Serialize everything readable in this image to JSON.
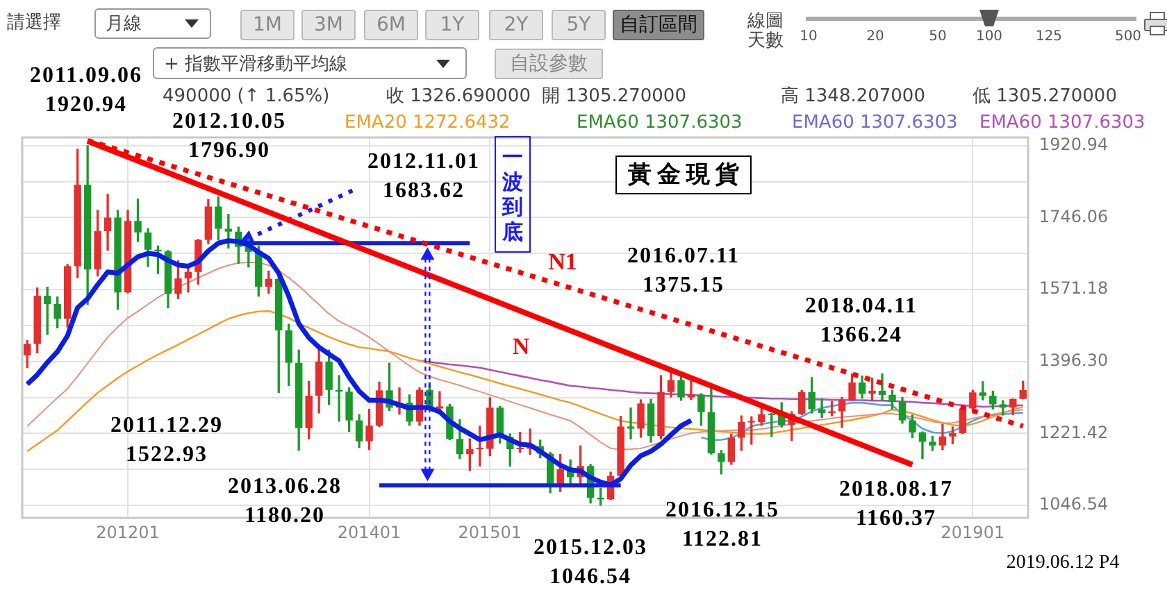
{
  "chart_data": {
    "type": "candlestick",
    "title": "黃金現貨",
    "categories": [
      null,
      null,
      null,
      null,
      null,
      null,
      null,
      null,
      null,
      null,
      "201201",
      null,
      null,
      null,
      null,
      null,
      null,
      null,
      null,
      null,
      null,
      null,
      null,
      null,
      null,
      null,
      null,
      null,
      null,
      null,
      null,
      null,
      null,
      null,
      "201401",
      null,
      null,
      null,
      null,
      null,
      null,
      null,
      null,
      null,
      null,
      null,
      "201501",
      null,
      null,
      null,
      null,
      null,
      null,
      null,
      null,
      null,
      null,
      null,
      null,
      null,
      null,
      null,
      null,
      null,
      null,
      null,
      null,
      null,
      null,
      null,
      null,
      null,
      null,
      null,
      null,
      null,
      null,
      null,
      null,
      null,
      null,
      null,
      null,
      null,
      null,
      null,
      null,
      null,
      null,
      null,
      null,
      null,
      null,
      null,
      "201901",
      null,
      null,
      null,
      null,
      null
    ],
    "ohlc": [
      [
        1411,
        1447,
        1381,
        1439
      ],
      [
        1439,
        1575,
        1417,
        1556
      ],
      [
        1556,
        1577,
        1462,
        1536
      ],
      [
        1536,
        1553,
        1478,
        1500
      ],
      [
        1500,
        1632,
        1480,
        1628
      ],
      [
        1628,
        1912,
        1600,
        1826
      ],
      [
        1826,
        1920.94,
        1535,
        1620
      ],
      [
        1620,
        1764,
        1604,
        1713
      ],
      [
        1713,
        1803,
        1667,
        1746
      ],
      [
        1746,
        1764,
        1522.93,
        1564
      ],
      [
        1564,
        1764,
        1563,
        1738
      ],
      [
        1738,
        1791,
        1688,
        1710
      ],
      [
        1710,
        1719,
        1627,
        1668
      ],
      [
        1668,
        1677,
        1610,
        1664
      ],
      [
        1664,
        1666,
        1527,
        1561
      ],
      [
        1561,
        1641,
        1549,
        1598
      ],
      [
        1598,
        1631,
        1565,
        1614
      ],
      [
        1614,
        1693,
        1584,
        1692
      ],
      [
        1692,
        1790,
        1683,
        1773
      ],
      [
        1773,
        1796.9,
        1692,
        1719
      ],
      [
        1719,
        1754,
        1672,
        1712
      ],
      [
        1712,
        1723,
        1635,
        1675
      ],
      [
        1675,
        1694,
        1626,
        1663
      ],
      [
        1663,
        1677,
        1555,
        1578
      ],
      [
        1578,
        1616,
        1562,
        1597
      ],
      [
        1597,
        1605,
        1321,
        1472
      ],
      [
        1472,
        1487,
        1338,
        1393
      ],
      [
        1393,
        1424,
        1180.2,
        1234
      ],
      [
        1234,
        1348,
        1208,
        1313
      ],
      [
        1313,
        1433,
        1271,
        1396
      ],
      [
        1396,
        1424,
        1292,
        1327
      ],
      [
        1327,
        1362,
        1251,
        1323
      ],
      [
        1323,
        1332,
        1226,
        1253
      ],
      [
        1253,
        1267,
        1187,
        1202
      ],
      [
        1202,
        1280,
        1182,
        1240
      ],
      [
        1240,
        1346,
        1238,
        1326
      ],
      [
        1326,
        1392,
        1277,
        1284
      ],
      [
        1284,
        1332,
        1268,
        1296
      ],
      [
        1296,
        1315,
        1241,
        1250
      ],
      [
        1250,
        1332,
        1241,
        1327
      ],
      [
        1327,
        1345,
        1282,
        1282
      ],
      [
        1282,
        1323,
        1273,
        1287
      ],
      [
        1287,
        1292,
        1206,
        1208
      ],
      [
        1208,
        1255,
        1160,
        1171
      ],
      [
        1171,
        1208,
        1131,
        1183
      ],
      [
        1183,
        1239,
        1142,
        1184
      ],
      [
        1184,
        1308,
        1167,
        1284
      ],
      [
        1284,
        1287,
        1198,
        1213
      ],
      [
        1213,
        1220,
        1142,
        1183
      ],
      [
        1183,
        1224,
        1175,
        1184
      ],
      [
        1184,
        1232,
        1170,
        1190
      ],
      [
        1190,
        1205,
        1162,
        1172
      ],
      [
        1172,
        1175,
        1077,
        1095
      ],
      [
        1095,
        1170,
        1080,
        1134
      ],
      [
        1134,
        1157,
        1098,
        1115
      ],
      [
        1115,
        1191,
        1098,
        1142
      ],
      [
        1142,
        1146,
        1052,
        1065
      ],
      [
        1065,
        1088,
        1046.54,
        1061
      ],
      [
        1061,
        1127,
        1061,
        1118
      ],
      [
        1118,
        1263,
        1110,
        1238
      ],
      [
        1238,
        1283,
        1208,
        1233
      ],
      [
        1233,
        1303,
        1212,
        1294
      ],
      [
        1294,
        1304,
        1200,
        1215
      ],
      [
        1215,
        1362,
        1208,
        1322
      ],
      [
        1322,
        1375.15,
        1310,
        1351
      ],
      [
        1351,
        1367,
        1302,
        1309
      ],
      [
        1309,
        1353,
        1304,
        1316
      ],
      [
        1316,
        1318,
        1241,
        1273
      ],
      [
        1273,
        1338,
        1171,
        1173
      ],
      [
        1173,
        1180,
        1122.81,
        1152
      ],
      [
        1152,
        1220,
        1146,
        1211
      ],
      [
        1211,
        1264,
        1180,
        1249
      ],
      [
        1248,
        1262,
        1195,
        1249
      ],
      [
        1249,
        1295,
        1241,
        1268
      ],
      [
        1268,
        1270,
        1214,
        1266
      ],
      [
        1266,
        1296,
        1237,
        1242
      ],
      [
        1242,
        1274,
        1204,
        1269
      ],
      [
        1269,
        1326,
        1267,
        1322
      ],
      [
        1322,
        1357,
        1271,
        1280
      ],
      [
        1280,
        1306,
        1260,
        1271
      ],
      [
        1271,
        1299,
        1264,
        1275
      ],
      [
        1275,
        1309,
        1236,
        1302
      ],
      [
        1302,
        1366,
        1302,
        1345
      ],
      [
        1345,
        1361,
        1307,
        1318
      ],
      [
        1318,
        1356,
        1303,
        1325
      ],
      [
        1325,
        1366.24,
        1301,
        1315
      ],
      [
        1315,
        1326,
        1281,
        1298
      ],
      [
        1298,
        1309,
        1246,
        1253
      ],
      [
        1253,
        1266,
        1211,
        1224
      ],
      [
        1224,
        1225,
        1160.37,
        1201
      ],
      [
        1201,
        1214,
        1180,
        1192
      ],
      [
        1192,
        1243,
        1182,
        1214
      ],
      [
        1214,
        1237,
        1196,
        1222
      ],
      [
        1222,
        1284,
        1221,
        1282
      ],
      [
        1282,
        1326,
        1276,
        1321
      ],
      [
        1321,
        1347,
        1303,
        1313
      ],
      [
        1313,
        1324,
        1281,
        1292
      ],
      [
        1292,
        1301,
        1266,
        1284
      ],
      [
        1284,
        1305,
        1267,
        1305
      ],
      [
        1305.27,
        1348.207,
        1305.27,
        1326.69
      ]
    ],
    "colors": [
      "#e52e2e",
      "#e52e2e",
      "#1a9a2a",
      "#1a9a2a",
      "#e52e2e",
      "#e52e2e",
      "#1a9a2a",
      "#e52e2e",
      "#e52e2e",
      "#1a9a2a",
      "#e52e2e",
      "#1a9a2a",
      "#1a9a2a",
      "#1a9a2a",
      "#1a9a2a",
      "#e52e2e",
      "#e52e2e",
      "#e52e2e",
      "#e52e2e",
      "#1a9a2a",
      "#1a9a2a",
      "#1a9a2a",
      "#1a9a2a",
      "#1a9a2a",
      "#e52e2e",
      "#1a9a2a",
      "#1a9a2a",
      "#1a9a2a",
      "#e52e2e",
      "#e52e2e",
      "#1a9a2a",
      "#1a9a2a",
      "#1a9a2a",
      "#1a9a2a",
      "#e52e2e",
      "#e52e2e",
      "#1a9a2a",
      "#e52e2e",
      "#1a9a2a",
      "#e52e2e",
      "#1a9a2a",
      "#e52e2e",
      "#1a9a2a",
      "#1a9a2a",
      "#e52e2e",
      "#e52e2e",
      "#e52e2e",
      "#1a9a2a",
      "#1a9a2a",
      "#e52e2e",
      "#e52e2e",
      "#1a9a2a",
      "#1a9a2a",
      "#e52e2e",
      "#1a9a2a",
      "#e52e2e",
      "#1a9a2a",
      "#1a9a2a",
      "#e52e2e",
      "#e52e2e",
      "#1a9a2a",
      "#e52e2e",
      "#1a9a2a",
      "#e52e2e",
      "#e52e2e",
      "#1a9a2a",
      "#e52e2e",
      "#1a9a2a",
      "#1a9a2a",
      "#1a9a2a",
      "#e52e2e",
      "#e52e2e",
      "#e52e2e",
      "#e52e2e",
      "#1a9a2a",
      "#1a9a2a",
      "#e52e2e",
      "#e52e2e",
      "#1a9a2a",
      "#1a9a2a",
      "#e52e2e",
      "#e52e2e",
      "#e52e2e",
      "#1a9a2a",
      "#e52e2e",
      "#1a9a2a",
      "#1a9a2a",
      "#1a9a2a",
      "#1a9a2a",
      "#1a9a2a",
      "#1a9a2a",
      "#e52e2e",
      "#e52e2e",
      "#e52e2e",
      "#e52e2e",
      "#1a9a2a",
      "#1a9a2a",
      "#1a9a2a",
      "#e52e2e",
      "#e52e2e"
    ],
    "series": [
      {
        "type": "line",
        "color": "#e8907a",
        "values": [
          1239,
          1262,
          1285,
          1308,
          1330,
          1360,
          1392,
          1424,
          1455,
          1480,
          1502,
          1518,
          1535,
          1552,
          1566,
          1577,
          1588,
          1600,
          1611,
          1622,
          1630,
          1636,
          1637,
          1637,
          1630,
          1617,
          1600,
          1580,
          1557,
          1535,
          1512,
          1494,
          1482,
          1470,
          1455,
          1438,
          1420,
          1403,
          1386,
          1370,
          1360,
          1352,
          1345,
          1338,
          1330,
          1323,
          1315,
          1307,
          1299,
          1291,
          1283,
          1275,
          1267,
          1260,
          1252,
          1236,
          1218,
          1200,
          1185,
          1182,
          1183,
          1185,
          1192,
          1200,
          1208,
          1215,
          1222,
          1225,
          1227,
          1228,
          1229,
          1229,
          1229,
          1232,
          1236,
          1240,
          1244,
          1248,
          1252,
          1255,
          1258,
          1261,
          1263,
          1265,
          1267,
          1269,
          1269,
          1266,
          1261,
          1256,
          1250,
          1246,
          1247,
          1252,
          1258,
          1263,
          1268,
          1272,
          1276,
          1279
        ]
      },
      {
        "type": "line",
        "name": "EMA20 1272.6432",
        "color": "#f39c1e",
        "values": [
          1178,
          1195,
          1212,
          1229,
          1252,
          1275,
          1298,
          1320,
          1338,
          1356,
          1372,
          1386,
          1400,
          1413,
          1425,
          1437,
          1450,
          1462,
          1475,
          1488,
          1500,
          1508,
          1514,
          1518,
          1519,
          1512,
          1502,
          1489,
          1478,
          1467,
          1456,
          1446,
          1438,
          1431,
          1428,
          1424,
          1421,
          1413,
          1405,
          1398,
          1391,
          1384,
          1377,
          1370,
          1364,
          1357,
          1350,
          1343,
          1336,
          1330,
          1323,
          1316,
          1309,
          1302,
          1296,
          1287,
          1278,
          1269,
          1260,
          1252,
          1248,
          1245,
          1242,
          1239,
          1236,
          1234,
          1232,
          1230,
          1228,
          1226,
          1224,
          1222,
          1220,
          1220,
          1222,
          1226,
          1230,
          1234,
          1238,
          1242,
          1246,
          1250,
          1254,
          1259,
          1264,
          1270,
          1279,
          1276,
          1270,
          1262,
          1254,
          1247,
          1242,
          1239,
          1244,
          1252,
          1262,
          1271,
          1279,
          1286
        ]
      },
      {
        "type": "line",
        "name": "EMA60 1307.6303",
        "color": "#2e8b2e",
        "values": [
          null,
          null,
          null,
          null,
          null,
          null,
          null,
          null,
          null,
          null,
          null,
          null,
          null,
          null,
          null,
          null,
          null,
          null,
          null,
          null,
          null,
          null,
          null,
          null,
          null,
          null,
          null,
          null,
          null,
          null,
          null,
          null,
          null,
          null,
          null,
          null,
          null,
          null,
          null,
          null,
          null,
          null,
          null,
          null,
          null,
          null,
          null,
          null,
          null,
          null,
          null,
          null,
          null,
          null,
          null,
          null,
          null,
          null,
          null,
          null,
          null,
          null,
          null,
          null,
          null,
          null,
          null,
          null,
          null,
          null,
          null,
          null,
          null,
          null,
          null,
          null,
          null,
          null,
          null,
          null,
          null,
          null,
          null,
          null,
          null,
          null,
          null,
          null,
          null,
          null,
          null,
          null,
          null,
          null,
          null,
          null,
          null,
          null,
          null,
          null
        ]
      },
      {
        "type": "line",
        "name": "EMA60 1307.6303",
        "color": "#6a6ad8",
        "values": [
          null,
          null,
          null,
          null,
          null,
          null,
          null,
          null,
          null,
          null,
          null,
          null,
          null,
          null,
          null,
          null,
          null,
          null,
          null,
          null,
          null,
          null,
          null,
          null,
          null,
          null,
          null,
          null,
          null,
          null,
          null,
          null,
          null,
          null,
          null,
          null,
          null,
          null,
          null,
          null,
          null,
          null,
          null,
          null,
          null,
          null,
          null,
          null,
          null,
          null,
          null,
          null,
          null,
          null,
          null,
          null,
          null,
          null,
          null,
          null,
          null,
          null,
          null,
          null,
          null,
          null,
          null,
          null,
          null,
          null,
          null,
          null,
          null,
          null,
          null,
          null,
          null,
          null,
          null,
          null,
          null,
          null,
          null,
          null,
          null,
          null,
          null,
          null,
          null,
          null,
          null,
          null,
          null,
          null,
          null,
          null,
          null,
          null,
          null,
          null
        ]
      },
      {
        "type": "line",
        "name": "EMA60 1307.6303",
        "color": "#b050b8",
        "values": [
          null,
          null,
          null,
          null,
          null,
          null,
          null,
          null,
          null,
          null,
          null,
          null,
          null,
          null,
          null,
          null,
          null,
          null,
          null,
          null,
          null,
          null,
          null,
          null,
          null,
          null,
          null,
          null,
          null,
          null,
          null,
          null,
          null,
          null,
          null,
          null,
          null,
          null,
          null,
          1398,
          1395,
          1392,
          1389,
          1387,
          1384,
          1381,
          1376,
          1371,
          1366,
          1361,
          1356,
          1351,
          1347,
          1342,
          1337,
          1335,
          1332,
          1330,
          1327,
          1325,
          1322,
          1320,
          1319,
          1318,
          1317,
          1316,
          1315,
          1313,
          1312,
          1311,
          1310,
          1309,
          1308,
          1307,
          1306,
          1306,
          1305,
          1305,
          1304,
          1304,
          1303,
          1303,
          1302,
          1302,
          1301,
          1301,
          1300,
          1299,
          1298,
          1296,
          1295,
          1293,
          1292,
          1290,
          1288,
          1286,
          1287,
          1288,
          1289,
          1290
        ]
      },
      {
        "type": "line",
        "color": "#5aa0e6",
        "values": [
          null,
          null,
          null,
          null,
          null,
          null,
          null,
          null,
          null,
          null,
          null,
          null,
          null,
          null,
          null,
          null,
          null,
          null,
          null,
          null,
          null,
          null,
          null,
          null,
          null,
          null,
          null,
          null,
          null,
          null,
          null,
          null,
          null,
          null,
          null,
          null,
          null,
          null,
          null,
          null,
          null,
          null,
          null,
          null,
          null,
          null,
          null,
          null,
          null,
          null,
          null,
          null,
          null,
          null,
          null,
          null,
          null,
          null,
          null,
          null,
          null,
          null,
          null,
          null,
          null,
          null,
          null,
          1212,
          1205,
          1206,
          1210,
          1222,
          1239,
          1244,
          1248,
          1252,
          1252,
          1262,
          1275,
          1283,
          1288,
          1292,
          1296,
          1296,
          1293,
          1290,
          1290,
          1268,
          1252,
          1233,
          1224,
          1222,
          1226,
          1239,
          1252,
          1262,
          1266,
          1268,
          1270,
          1272
        ]
      },
      {
        "type": "line",
        "color": "#0a1ee6",
        "values": [
          1341,
          1364,
          1394,
          1420,
          1459,
          1527,
          1549,
          1583,
          1614,
          1611,
          1631,
          1651,
          1659,
          1656,
          1642,
          1631,
          1628,
          1639,
          1665,
          1684,
          1690,
          1688,
          1679,
          1662,
          1647,
          1611,
          1555,
          1488,
          1454,
          1431,
          1414,
          1398,
          1358,
          1324,
          1302,
          1302,
          1299,
          1291,
          1283,
          1285,
          1283,
          1274,
          1251,
          1234,
          1220,
          1206,
          1212,
          1218,
          1206,
          1195,
          1193,
          1178,
          1161,
          1144,
          1133,
          1130,
          1114,
          1103,
          1096,
          1111,
          1144,
          1167,
          1178,
          1195,
          1218,
          1240,
          1253,
          null,
          null,
          null,
          null,
          null,
          null,
          null,
          null,
          null,
          null,
          null,
          null,
          null,
          null,
          null,
          null,
          null,
          null,
          null,
          null,
          null,
          null,
          null,
          null,
          null,
          null,
          null,
          null,
          null,
          null,
          null,
          null,
          null
        ]
      },
      {
        "type": "line",
        "color": "#ff0000",
        "values": [
          null,
          null,
          null,
          null,
          null,
          null,
          1932,
          null,
          null,
          null,
          null,
          null,
          null,
          null,
          null,
          null,
          null,
          null,
          null,
          null,
          null,
          null,
          null,
          null,
          null,
          null,
          null,
          null,
          null,
          null,
          null,
          null,
          null,
          null,
          null,
          null,
          null,
          null,
          null,
          null,
          null,
          null,
          null,
          null,
          null,
          null,
          null,
          null,
          null,
          null,
          null,
          null,
          null,
          null,
          null,
          null,
          null,
          null,
          null,
          null,
          null,
          null,
          null,
          null,
          null,
          null,
          null,
          null,
          null,
          null,
          null,
          null,
          null,
          null,
          null,
          null,
          null,
          null,
          null,
          null,
          null,
          null,
          null,
          null,
          null,
          null,
          null,
          null,
          1145,
          null,
          null,
          null,
          null,
          null,
          null,
          null,
          null,
          null,
          null,
          null
        ]
      },
      {
        "type": "line",
        "color": "#ff0000",
        "line_style": "dotted",
        "values": [
          null,
          null,
          null,
          null,
          null,
          null,
          1934,
          null,
          null,
          null,
          null,
          null,
          null,
          null,
          null,
          null,
          null,
          null,
          null,
          null,
          null,
          null,
          null,
          null,
          null,
          null,
          null,
          null,
          null,
          null,
          null,
          null,
          null,
          null,
          null,
          null,
          null,
          null,
          null,
          null,
          null,
          null,
          null,
          null,
          null,
          null,
          null,
          null,
          null,
          null,
          null,
          null,
          null,
          null,
          null,
          null,
          null,
          null,
          null,
          null,
          null,
          null,
          null,
          null,
          null,
          null,
          null,
          null,
          null,
          null,
          null,
          null,
          null,
          null,
          null,
          null,
          null,
          null,
          null,
          null,
          null,
          null,
          null,
          null,
          null,
          null,
          null,
          null,
          null,
          null,
          null,
          null,
          null,
          null,
          null,
          null,
          null,
          null,
          null,
          1239
        ]
      },
      {
        "type": "line",
        "color": "#1020e0",
        "values": [
          null,
          null,
          null,
          null,
          null,
          null,
          null,
          null,
          null,
          null,
          null,
          null,
          null,
          null,
          null,
          null,
          null,
          null,
          null,
          null,
          null,
          1684,
          null,
          null,
          null,
          null,
          null,
          null,
          null,
          null,
          null,
          null,
          null,
          null,
          null,
          null,
          null,
          null,
          null,
          null,
          null,
          null,
          null,
          null,
          1684,
          null,
          null,
          null,
          null,
          null,
          null,
          null,
          null,
          null,
          null,
          null,
          null,
          null,
          null,
          null,
          null,
          null,
          null,
          null,
          null,
          null,
          null,
          null,
          null,
          null,
          null,
          null,
          null,
          null,
          null,
          null,
          null,
          null,
          null,
          null,
          null,
          null,
          null,
          null,
          null,
          null,
          null,
          null,
          null,
          null,
          null,
          null,
          null,
          null,
          null,
          null,
          null,
          null,
          null,
          null
        ]
      },
      {
        "type": "line",
        "color": "#1020e0",
        "values": [
          null,
          null,
          null,
          null,
          null,
          null,
          null,
          null,
          null,
          null,
          null,
          null,
          null,
          null,
          null,
          null,
          null,
          null,
          null,
          null,
          null,
          null,
          null,
          null,
          null,
          null,
          null,
          null,
          null,
          null,
          null,
          null,
          null,
          null,
          null,
          1095,
          null,
          null,
          null,
          null,
          null,
          null,
          null,
          null,
          null,
          null,
          null,
          null,
          null,
          null,
          null,
          null,
          null,
          null,
          null,
          null,
          null,
          null,
          null,
          1095,
          null,
          null,
          null,
          null,
          null,
          null,
          null,
          null,
          null,
          null,
          null,
          null,
          null,
          null,
          null,
          null,
          null,
          null,
          null,
          null,
          null,
          null,
          null,
          null,
          null,
          null,
          null,
          null,
          null,
          null,
          null,
          null,
          null,
          null,
          null,
          null,
          null,
          null,
          null,
          null
        ]
      }
    ],
    "ylim": [
      1016,
      1941
    ],
    "yticks": [
      1046.54,
      {
        "value": 1133.98,
        "label": null
      },
      1221.42,
      {
        "value": 1308.86,
        "label": null
      },
      {
        "value": 1396.3,
        "label": "1396.30"
      },
      {
        "value": 1483.74,
        "label": null
      },
      1571.18,
      {
        "value": 1658.62,
        "label": null
      },
      1746.06,
      {
        "value": 1833.5,
        "label": null
      },
      1920.94
    ],
    "grid": true,
    "legend": "top",
    "annotations": [
      "2011.09.06\n1920.94",
      "2012.10.05\n1796.90",
      {
        "text": "2012.11.01\n1683.62",
        "y": 1683.62
      },
      "2011.12.29\n1522.93",
      "2013.06.28\n1180.20",
      "2015.12.03\n1046.54",
      "2016.12.15\n1122.81",
      "2016.07.11\n1375.15",
      "2018.04.11\n1366.24",
      "2018.08.17\n1160.37",
      "N1",
      "N",
      "一波到底",
      "2019.06.12 P4",
      "請選擇",
      "月線",
      "1M",
      "3M",
      "6M",
      "1Y",
      "2Y",
      "5Y",
      "自訂區間",
      "線圖天數",
      "10",
      "20",
      "50",
      "100",
      "125",
      "500",
      "+ 指數平滑移動平均線",
      "自設參數",
      "490000 (↑ 1.65%)",
      "收 1326.690000",
      "開 1305.270000",
      "高 1348.207000",
      "低 1305.270000"
    ]
  }
}
